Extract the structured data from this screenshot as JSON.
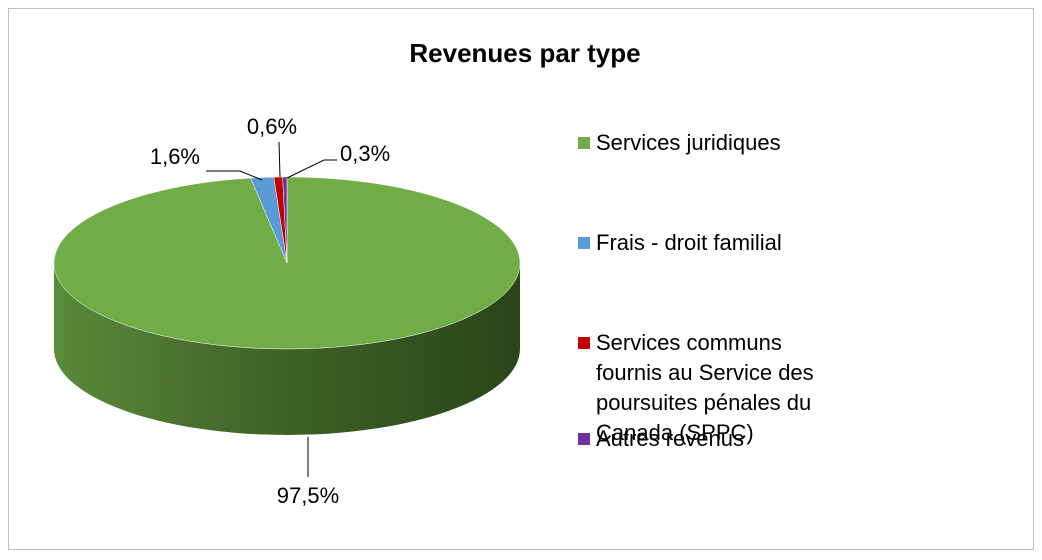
{
  "chart_data": {
    "type": "pie",
    "title": "Revenues par type",
    "categories": [
      "Services juridiques",
      "Frais - droit familial",
      "Services communs fournis au Service des poursuites pénales du Canada (SPPC)",
      "Autres revenus"
    ],
    "values": [
      97.5,
      1.6,
      0.6,
      0.3
    ],
    "value_labels": [
      "97,5%",
      "1,6%",
      "0,6%",
      "0,3%"
    ],
    "colors": [
      "#70ad47",
      "#5b9bd5",
      "#c00000",
      "#7030a0"
    ],
    "legend": "right"
  }
}
